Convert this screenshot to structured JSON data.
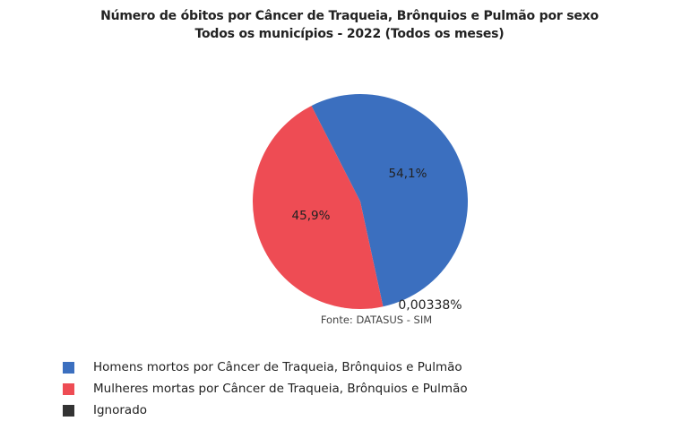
{
  "chart_data": {
    "type": "pie",
    "title": "Número de óbitos por Câncer de Traqueia, Brônquios e Pulmão por sexo",
    "subtitle": "Todos os municípios - 2022 (Todos os meses)",
    "source": "Fonte: DATASUS - SIM",
    "legend_position": "bottom-left",
    "slices": [
      {
        "name": "Homens mortos por Câncer de Traqueia, Brônquios e Pulmão",
        "value": 54.1,
        "label": "54,1%",
        "color": "#3b6fbf"
      },
      {
        "name": "Mulheres mortas por Câncer de Traqueia, Brônquios e Pulmão",
        "value": 45.9,
        "label": "45,9%",
        "color": "#ee4c54"
      },
      {
        "name": "Ignorado",
        "value": 0.00338,
        "label": "0,00338%",
        "color": "#333333"
      }
    ]
  }
}
